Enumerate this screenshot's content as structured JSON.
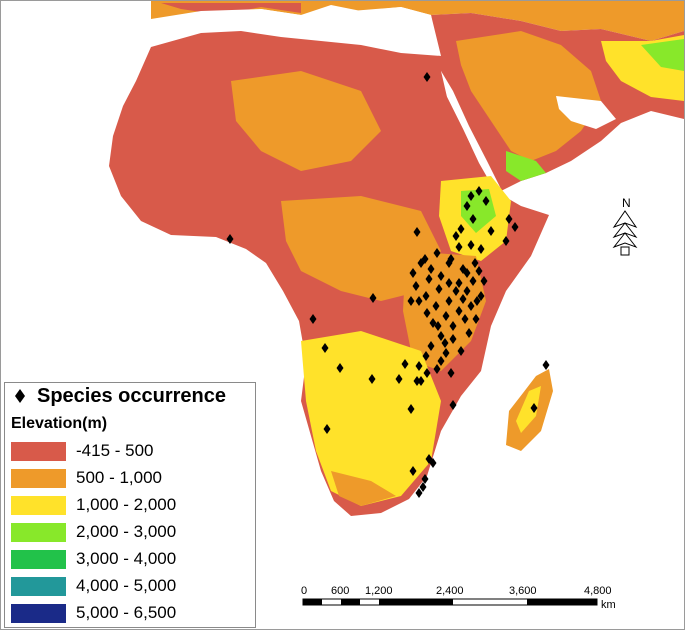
{
  "legend": {
    "occurrence_label": "Species occurrence",
    "elevation_title": "Elevation(m)",
    "classes": [
      {
        "label": "-415 - 500",
        "color": "#d85a4a"
      },
      {
        "label": "500 - 1,000",
        "color": "#ee9a2a"
      },
      {
        "label": "1,000 - 2,000",
        "color": "#ffe22a"
      },
      {
        "label": "2,000 - 3,000",
        "color": "#88e82a"
      },
      {
        "label": "3,000 - 4,000",
        "color": "#22c24a"
      },
      {
        "label": "4,000 - 5,000",
        "color": "#22989a"
      },
      {
        "label": "5,000 - 6,500",
        "color": "#1a2a88"
      }
    ]
  },
  "north_arrow": {
    "label": "N"
  },
  "scale_bar": {
    "ticks": [
      "0",
      "600",
      "1,200",
      "2,400",
      "3,600",
      "4,800"
    ],
    "unit": "km"
  }
}
